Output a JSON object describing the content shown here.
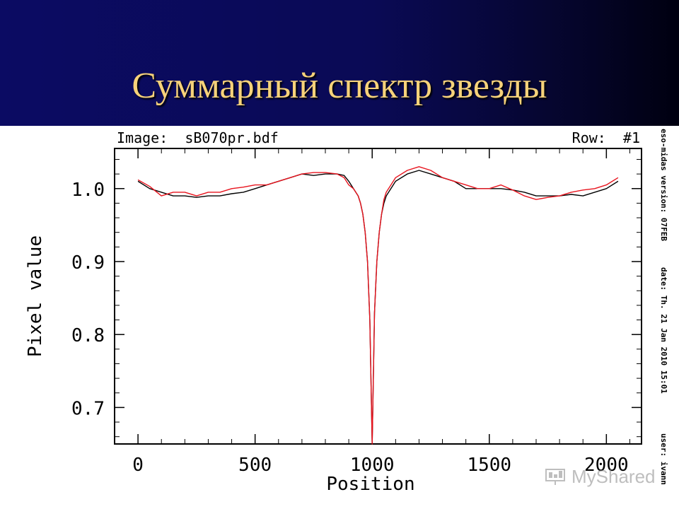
{
  "slide": {
    "title": "Суммарный спектр звезды"
  },
  "plot": {
    "image_label": "Image:  sB070pr.bdf",
    "row_label": "Row:  #1",
    "side_texts": [
      "eso-midas version: 07FEB",
      "date: Th. 21 Jan 2010 15:01",
      "user: ivann"
    ]
  },
  "watermark": {
    "text": "MyShared",
    "icon": "presentation-board-icon"
  },
  "colors": {
    "black_series": "#000000",
    "red_series": "#e8141e",
    "title": "#f6d27a",
    "header_bg": "#0b0b63"
  },
  "chart_data": {
    "type": "line",
    "xlabel": "Position",
    "ylabel": "Pixel value",
    "xlim": [
      -100,
      2150
    ],
    "ylim": [
      0.65,
      1.055
    ],
    "x_ticks": [
      0,
      500,
      1000,
      1500,
      2000
    ],
    "y_ticks": [
      0.7,
      0.8,
      0.9,
      1.0
    ],
    "x_tick_labels": [
      "0",
      "500",
      "1000",
      "1500",
      "2000"
    ],
    "y_tick_labels": [
      "0.7",
      "0.8",
      "0.9",
      "1.0"
    ],
    "grid": false,
    "series": [
      {
        "color": "#000000",
        "x": [
          0,
          50,
          100,
          150,
          200,
          250,
          300,
          350,
          400,
          450,
          500,
          550,
          600,
          650,
          700,
          750,
          800,
          850,
          880,
          900,
          920,
          940,
          950,
          960,
          970,
          980,
          990,
          1000,
          1010,
          1020,
          1030,
          1040,
          1050,
          1060,
          1080,
          1100,
          1150,
          1200,
          1250,
          1300,
          1350,
          1400,
          1450,
          1500,
          1550,
          1600,
          1650,
          1700,
          1750,
          1800,
          1850,
          1900,
          1950,
          2000,
          2050
        ],
        "y": [
          1.01,
          1.0,
          0.995,
          0.99,
          0.99,
          0.988,
          0.99,
          0.99,
          0.993,
          0.995,
          1.0,
          1.005,
          1.01,
          1.015,
          1.02,
          1.018,
          1.02,
          1.02,
          1.018,
          1.01,
          1.0,
          0.99,
          0.98,
          0.965,
          0.94,
          0.9,
          0.82,
          0.65,
          0.83,
          0.9,
          0.94,
          0.965,
          0.98,
          0.99,
          1.0,
          1.01,
          1.02,
          1.025,
          1.02,
          1.015,
          1.01,
          1.0,
          1.0,
          1.0,
          1.0,
          0.998,
          0.995,
          0.99,
          0.99,
          0.99,
          0.992,
          0.99,
          0.995,
          1.0,
          1.01
        ]
      },
      {
        "color": "#e8141e",
        "x": [
          0,
          50,
          100,
          150,
          200,
          250,
          300,
          350,
          400,
          450,
          500,
          550,
          600,
          650,
          700,
          750,
          800,
          850,
          880,
          900,
          920,
          940,
          950,
          960,
          970,
          980,
          990,
          1000,
          1010,
          1020,
          1030,
          1040,
          1050,
          1060,
          1080,
          1100,
          1150,
          1200,
          1250,
          1300,
          1350,
          1400,
          1450,
          1500,
          1550,
          1600,
          1650,
          1700,
          1750,
          1800,
          1850,
          1900,
          1950,
          2000,
          2050
        ],
        "y": [
          1.012,
          1.003,
          0.99,
          0.995,
          0.995,
          0.99,
          0.995,
          0.995,
          1.0,
          1.002,
          1.005,
          1.005,
          1.01,
          1.015,
          1.02,
          1.022,
          1.022,
          1.02,
          1.015,
          1.005,
          1.0,
          0.99,
          0.98,
          0.965,
          0.94,
          0.9,
          0.82,
          0.65,
          0.83,
          0.9,
          0.94,
          0.965,
          0.985,
          0.995,
          1.005,
          1.015,
          1.025,
          1.03,
          1.025,
          1.015,
          1.01,
          1.005,
          1.0,
          1.0,
          1.005,
          0.998,
          0.99,
          0.985,
          0.988,
          0.99,
          0.995,
          0.998,
          1.0,
          1.005,
          1.015
        ]
      }
    ]
  }
}
